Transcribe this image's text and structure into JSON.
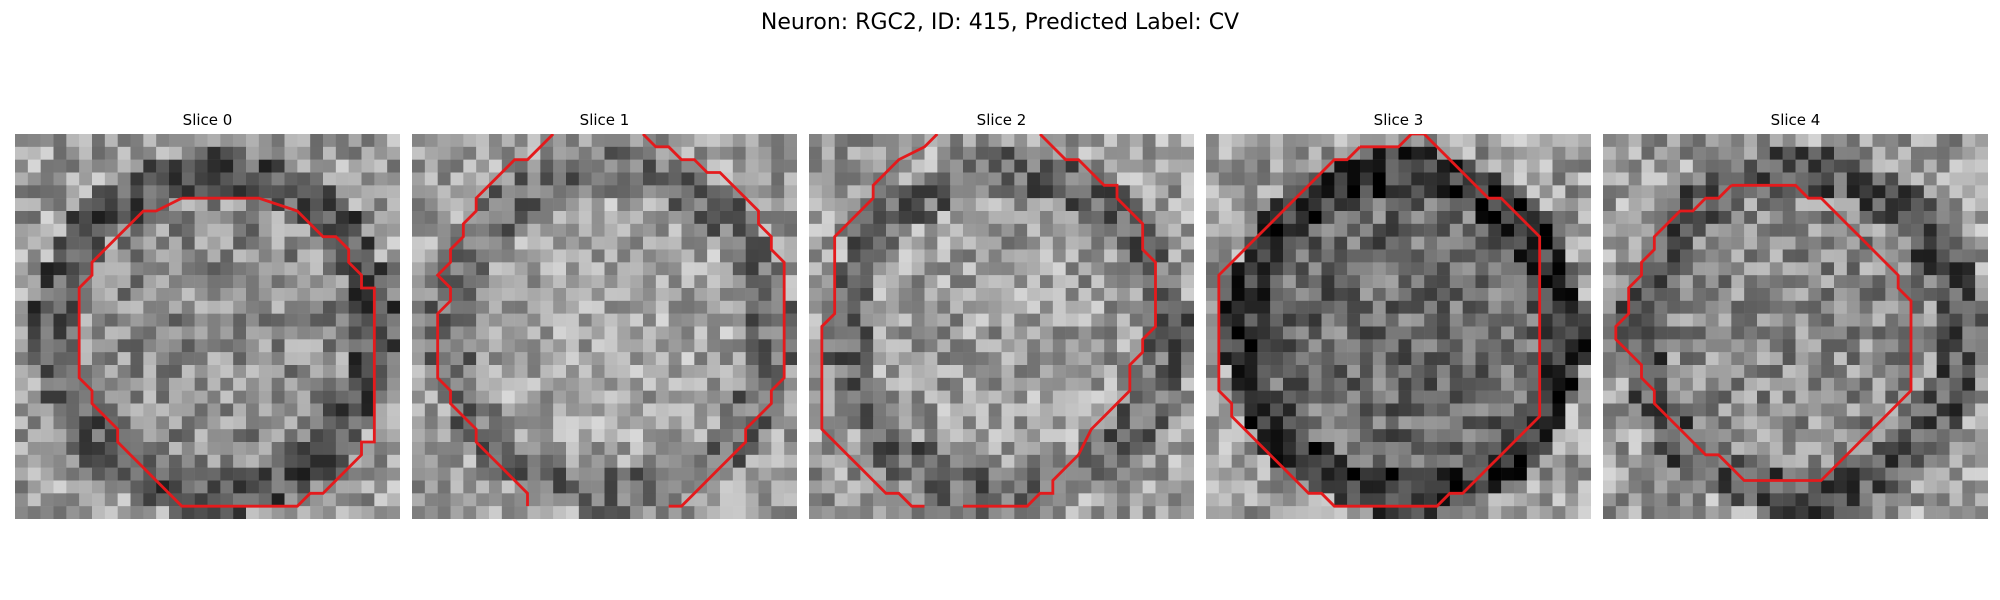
{
  "figure": {
    "title": "Neuron: RGC2, ID: 415, Predicted Label: CV"
  },
  "panels": [
    {
      "title": "Slice 0",
      "seed": 11,
      "contrast": 0.22,
      "center_brightness": 0.55
    },
    {
      "title": "Slice 1",
      "seed": 23,
      "contrast": 0.2,
      "center_brightness": 0.65
    },
    {
      "title": "Slice 2",
      "seed": 37,
      "contrast": 0.22,
      "center_brightness": 0.62
    },
    {
      "title": "Slice 3",
      "seed": 51,
      "contrast": 0.22,
      "center_brightness": 0.42
    },
    {
      "title": "Slice 4",
      "seed": 67,
      "contrast": 0.22,
      "center_brightness": 0.55
    }
  ],
  "colors": {
    "contour": "#e41a1c",
    "background": "#ffffff"
  }
}
